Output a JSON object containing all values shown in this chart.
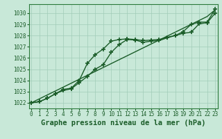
{
  "title": "Graphe pression niveau de la mer (hPa)",
  "xlabel_ticks": [
    0,
    1,
    2,
    3,
    4,
    5,
    6,
    7,
    8,
    9,
    10,
    11,
    12,
    13,
    14,
    15,
    16,
    17,
    18,
    19,
    20,
    21,
    22,
    23
  ],
  "ylim": [
    1021.5,
    1030.8
  ],
  "xlim": [
    -0.3,
    23.3
  ],
  "yticks": [
    1022,
    1023,
    1024,
    1025,
    1026,
    1027,
    1028,
    1029,
    1030
  ],
  "bg_color": "#c8e8d8",
  "grid_color": "#a0ccb8",
  "line_color": "#1a5c28",
  "series_linear": [
    1022.0,
    1022.35,
    1022.7,
    1023.05,
    1023.4,
    1023.75,
    1024.1,
    1024.45,
    1024.8,
    1025.15,
    1025.5,
    1025.85,
    1026.2,
    1026.55,
    1026.9,
    1027.25,
    1027.6,
    1027.95,
    1028.3,
    1028.65,
    1029.0,
    1029.35,
    1029.7,
    1030.3
  ],
  "series_upper": [
    1022.0,
    1022.1,
    1022.4,
    1022.8,
    1023.2,
    1023.3,
    1024.0,
    1025.5,
    1026.3,
    1026.8,
    1027.5,
    1027.65,
    1027.7,
    1027.65,
    1027.55,
    1027.6,
    1027.65,
    1027.85,
    1028.0,
    1028.35,
    1029.0,
    1029.2,
    1029.2,
    1030.35
  ],
  "series_lower": [
    1022.0,
    1022.1,
    1022.4,
    1022.8,
    1023.1,
    1023.25,
    1023.8,
    1024.35,
    1025.0,
    1025.4,
    1026.5,
    1027.2,
    1027.65,
    1027.6,
    1027.4,
    1027.5,
    1027.55,
    1027.8,
    1028.0,
    1028.2,
    1028.3,
    1029.05,
    1029.15,
    1030.0
  ],
  "marker": "+",
  "marker_size": 4,
  "marker_edge_width": 1.2,
  "line_width": 1.0,
  "title_fontsize": 7.5,
  "tick_fontsize": 5.5,
  "axis_color": "#2a7a3a"
}
